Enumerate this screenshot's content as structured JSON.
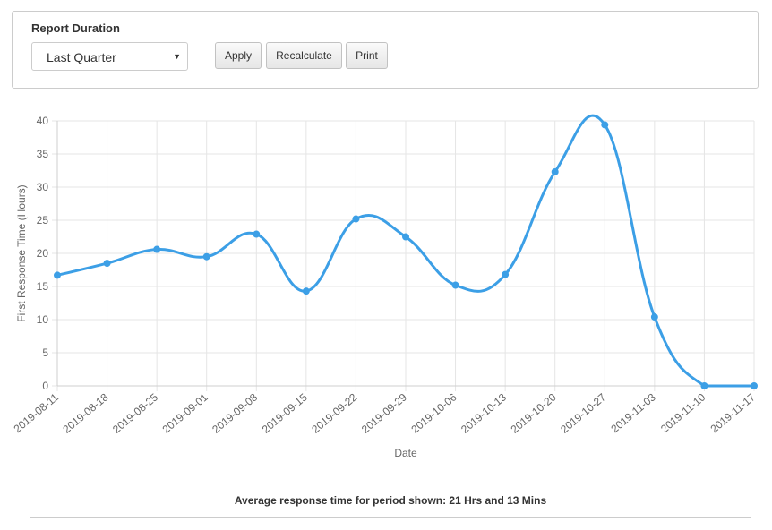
{
  "controls": {
    "label": "Report Duration",
    "duration_value": "Last Quarter",
    "apply_label": "Apply",
    "recalculate_label": "Recalculate",
    "print_label": "Print"
  },
  "chart_data": {
    "type": "line",
    "title": "",
    "xlabel": "Date",
    "ylabel": "First Response Time (Hours)",
    "ylim": [
      0,
      40
    ],
    "y_ticks": [
      0,
      5,
      10,
      15,
      20,
      25,
      30,
      35,
      40
    ],
    "grid": true,
    "legend": "none",
    "line_color": "#3c9fe6",
    "categories": [
      "2019-08-11",
      "2019-08-18",
      "2019-08-25",
      "2019-09-01",
      "2019-09-08",
      "2019-09-15",
      "2019-09-22",
      "2019-09-29",
      "2019-10-06",
      "2019-10-13",
      "2019-10-20",
      "2019-10-27",
      "2019-11-03",
      "2019-11-10",
      "2019-11-17"
    ],
    "values": [
      16.7,
      18.5,
      20.6,
      19.5,
      22.9,
      14.3,
      25.2,
      22.5,
      15.2,
      16.8,
      32.3,
      39.4,
      10.4,
      0,
      0
    ]
  },
  "summary": {
    "text": "Average response time for period shown: 21 Hrs and 13 Mins"
  }
}
